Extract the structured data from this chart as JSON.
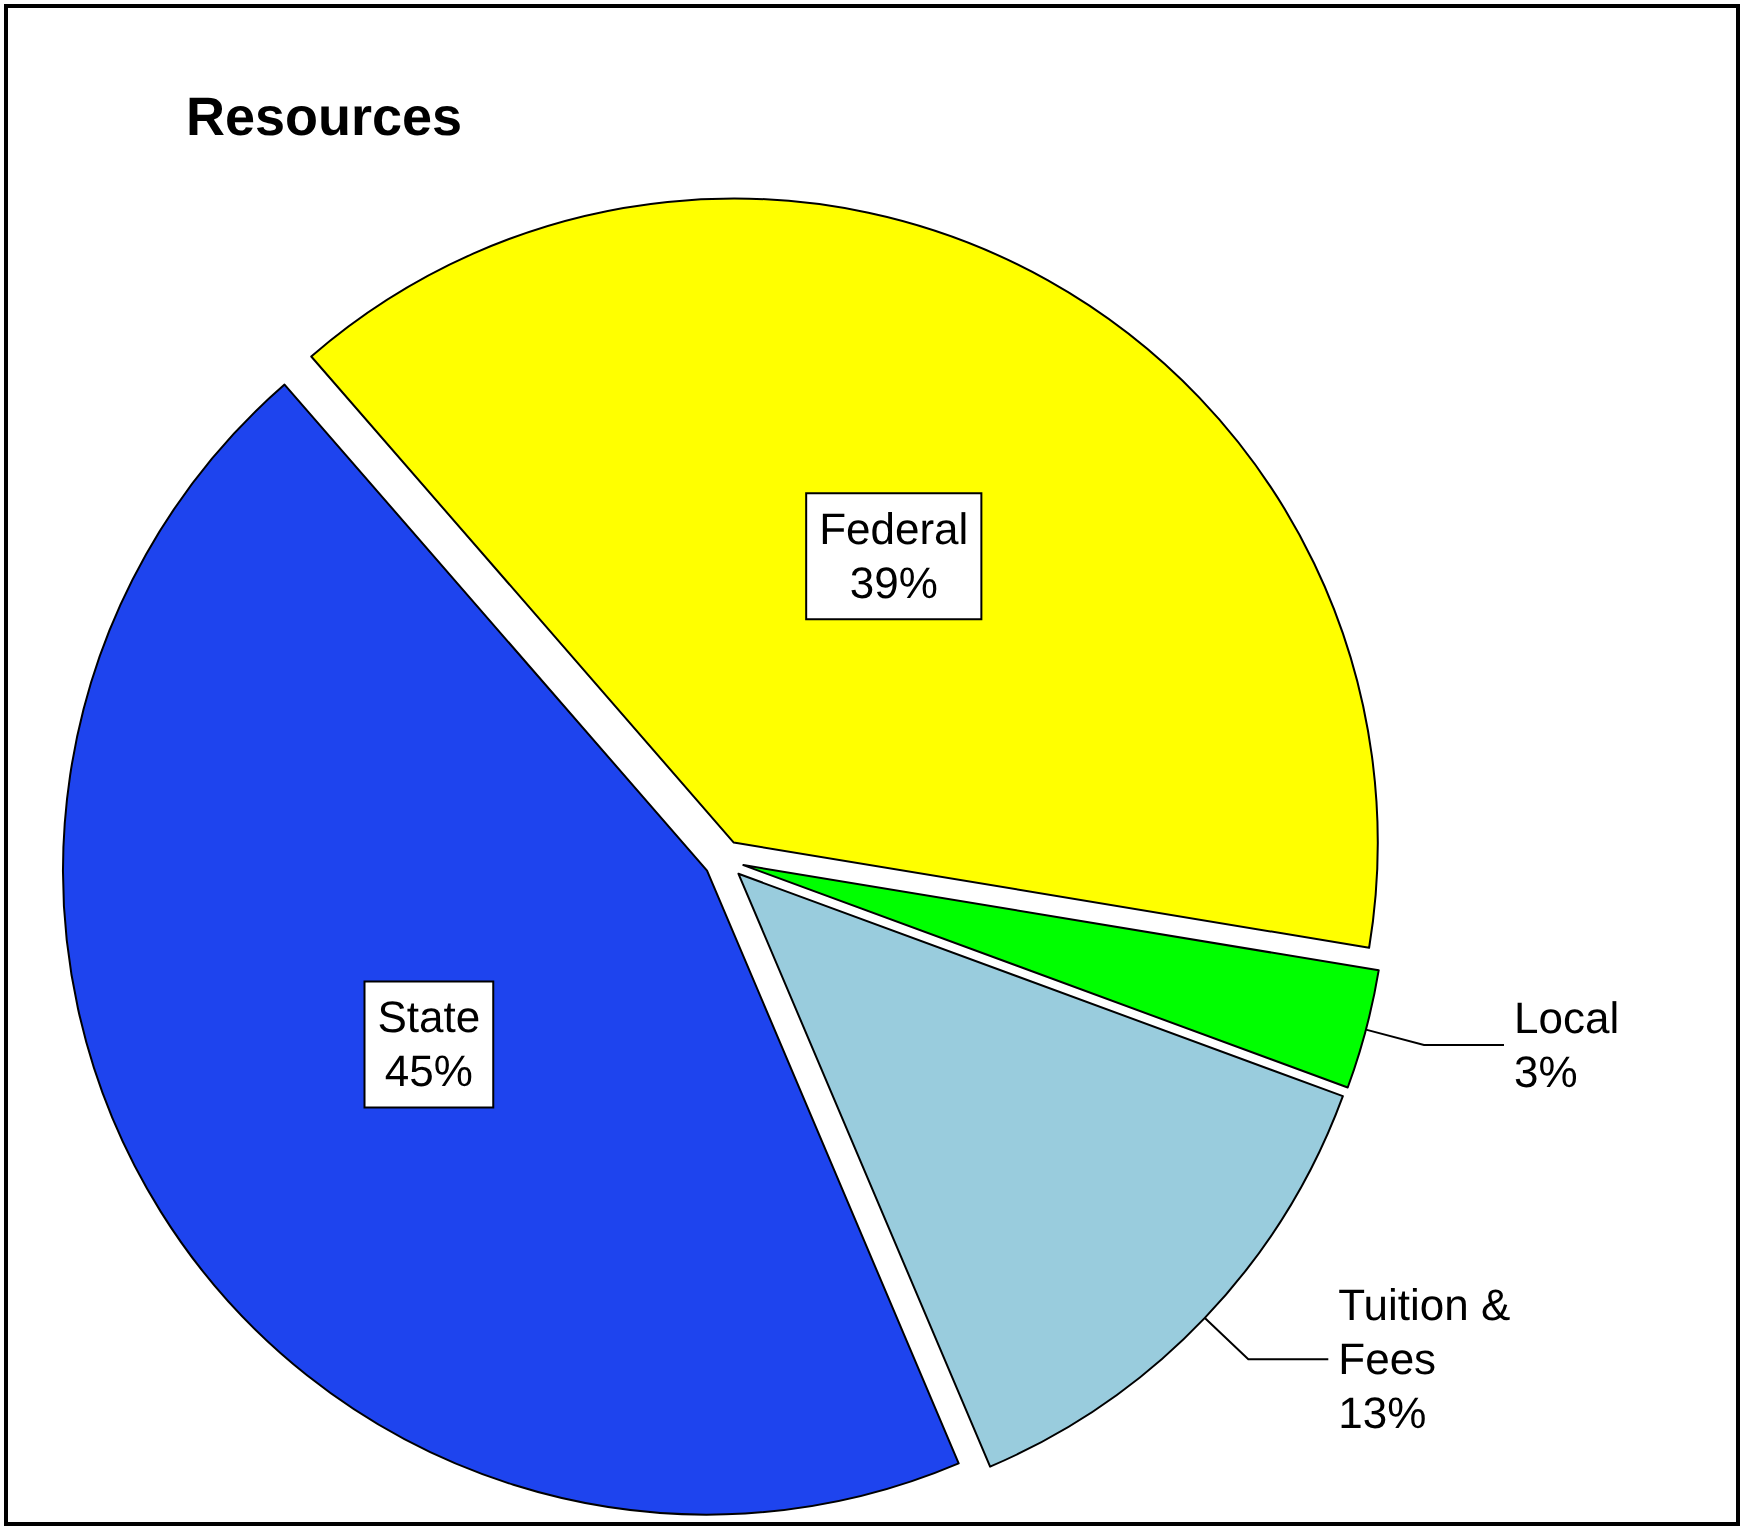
{
  "chart_data": {
    "type": "pie",
    "title": "Resources",
    "categories": [
      "Federal",
      "Local",
      "Tuition &\nFees",
      "State"
    ],
    "values": [
      39,
      3,
      13,
      45
    ],
    "value_labels": [
      "39%",
      "3%",
      "13%",
      "45%"
    ],
    "colors": [
      "#ffff00",
      "#00ff00",
      "#99ccdd",
      "#1e44ee"
    ],
    "legend": false
  }
}
